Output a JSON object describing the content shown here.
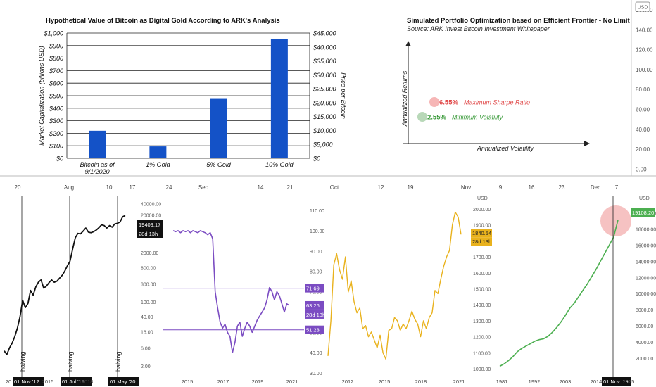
{
  "top_axis": {
    "right_scale": [
      "160.00",
      "140.00",
      "120.00",
      "100.00",
      "80.00",
      "60.00",
      "40.00",
      "20.00",
      "0.00"
    ],
    "usd_badge": "USD",
    "date_labels": [
      "20",
      "Aug",
      "10",
      "17",
      "24",
      "Sep",
      "14",
      "21",
      "Oct",
      "12",
      "19",
      "Nov",
      "9",
      "16",
      "23",
      "Dec",
      "7"
    ]
  },
  "chart_data": [
    {
      "type": "bar",
      "title": "Hypothetical Value of Bitcoin as Digital Gold According to ARK's Analysis",
      "categories": [
        "Bitcoin as of 9/1/2020",
        "1% Gold",
        "5% Gold",
        "10% Gold"
      ],
      "series": [
        {
          "values": [
            220,
            95,
            480,
            955
          ]
        }
      ],
      "ylabel": "Market Capitalization (billions USD)",
      "y2label": "Price per Bitcoin",
      "ylim": [
        0,
        1000
      ],
      "y_ticks": [
        "$0",
        "$100",
        "$200",
        "$300",
        "$400",
        "$500",
        "$600",
        "$700",
        "$800",
        "$900",
        "$1,000"
      ],
      "y2_ticks": [
        "$0",
        "$5,000",
        "$10,000",
        "$15,000",
        "$20,000",
        "$25,000",
        "$30,000",
        "$35,000",
        "$40,000",
        "$45,000"
      ],
      "bar_color": "#1452c7"
    },
    {
      "type": "scatter",
      "title": "Simulated Portfolio Optimization based on Efficient Frontier - No Limit",
      "subtitle": "Source: ARK Invest Bitcoin Investment Whitepaper",
      "xlabel": "Annualized Volatility",
      "ylabel": "Annualized Returns",
      "points": [
        {
          "value": "6.55%",
          "label": "Maximum Sharpe Ratio",
          "color": "#e04848",
          "fill": "#f6b6b6"
        },
        {
          "value": "2.55%",
          "label": "Minimum Volatility",
          "color": "#3a9a3a",
          "fill": "#b8d8b8"
        }
      ]
    },
    {
      "type": "line",
      "name": "bitcoin",
      "scale": "log",
      "y_ticks": [
        "40000.00",
        "20000.00",
        "6000.00",
        "2000.00",
        "800.00",
        "300.00",
        "100.00",
        "40.00",
        "16.00",
        "6.00",
        "2.00"
      ],
      "x_ticks": [
        "20",
        "2015",
        "2018"
      ],
      "last_value": "19409.17",
      "countdown": "28d 13h",
      "halvings": [
        {
          "date": "01 Nov '12",
          "label": "halving"
        },
        {
          "date": "01 Jul '16",
          "label": "halving"
        },
        {
          "date": "01 May '20",
          "label": "halving"
        }
      ],
      "values": [
        5,
        4,
        6,
        8,
        12,
        20,
        40,
        110,
        70,
        90,
        200,
        150,
        250,
        330,
        380,
        230,
        260,
        320,
        380,
        330,
        350,
        420,
        500,
        650,
        900,
        1200,
        2500,
        5000,
        6500,
        6300,
        7500,
        9000,
        7000,
        6800,
        7200,
        8000,
        9200,
        11000,
        10500,
        9000,
        10500,
        9500,
        11500,
        12000,
        13000,
        18000,
        19409
      ]
    },
    {
      "type": "line",
      "name": "purple",
      "y_ticks": [
        "110.00",
        "100.00",
        "90.00",
        "80.00",
        "70.00",
        "60.00",
        "50.00",
        "40.00",
        "30.00"
      ],
      "x_ticks": [
        "2015",
        "2017",
        "2019",
        "2021"
      ],
      "hlines": [
        "71.69",
        "51.23"
      ],
      "last_value": "63.26",
      "countdown": "28d 13h",
      "color": "#7b4cc2",
      "values": [
        100,
        99.5,
        100,
        99,
        100,
        99.5,
        100,
        99,
        100,
        99.5,
        99,
        100,
        99.5,
        99,
        98,
        99,
        96,
        70,
        62,
        55,
        52,
        54,
        50,
        48,
        40,
        45,
        53,
        55,
        48,
        52,
        55,
        53,
        50,
        53,
        56,
        58,
        60,
        62,
        66,
        72,
        70,
        66,
        70,
        68,
        64,
        60,
        64,
        63.26
      ]
    },
    {
      "type": "line",
      "name": "gold",
      "y_ticks": [
        "2000.00",
        "1900.00",
        "1800.00",
        "1700.00",
        "1600.00",
        "1500.00",
        "1400.00",
        "1300.00",
        "1200.00",
        "1100.00",
        "1000.00"
      ],
      "x_ticks": [
        "2012",
        "2015",
        "2018",
        "2021"
      ],
      "last_value": "1840.54",
      "countdown": "28d 13h",
      "usd_badge": "USD",
      "color": "#e9b21d",
      "values": [
        1080,
        1300,
        1650,
        1720,
        1620,
        1560,
        1700,
        1480,
        1550,
        1420,
        1350,
        1380,
        1250,
        1270,
        1200,
        1230,
        1180,
        1130,
        1210,
        1100,
        1060,
        1240,
        1250,
        1320,
        1300,
        1240,
        1280,
        1250,
        1300,
        1360,
        1310,
        1280,
        1200,
        1300,
        1250,
        1320,
        1350,
        1490,
        1470,
        1560,
        1640,
        1700,
        1740,
        1900,
        1980,
        1950,
        1840.54
      ]
    },
    {
      "type": "line",
      "name": "sp500",
      "y_ticks": [
        "20000.00",
        "18000.00",
        "16000.00",
        "14000.00",
        "12000.00",
        "10000.00",
        "8000.00",
        "6000.00",
        "4000.00",
        "2000.00"
      ],
      "x_ticks": [
        "1981",
        "1992",
        "2003",
        "2014",
        "2025"
      ],
      "last_value": "19108.20",
      "marker_date": "01 Nov '19",
      "color": "#4caf50",
      "usd_badge": "USD",
      "values": [
        1000,
        1300,
        1700,
        2200,
        2800,
        3200,
        3500,
        3800,
        4100,
        4300,
        4400,
        4700,
        5200,
        5800,
        6500,
        7300,
        8200,
        8800,
        9600,
        10400,
        11200,
        12100,
        13000,
        14000,
        15000,
        16000,
        17000,
        19108
      ]
    }
  ]
}
